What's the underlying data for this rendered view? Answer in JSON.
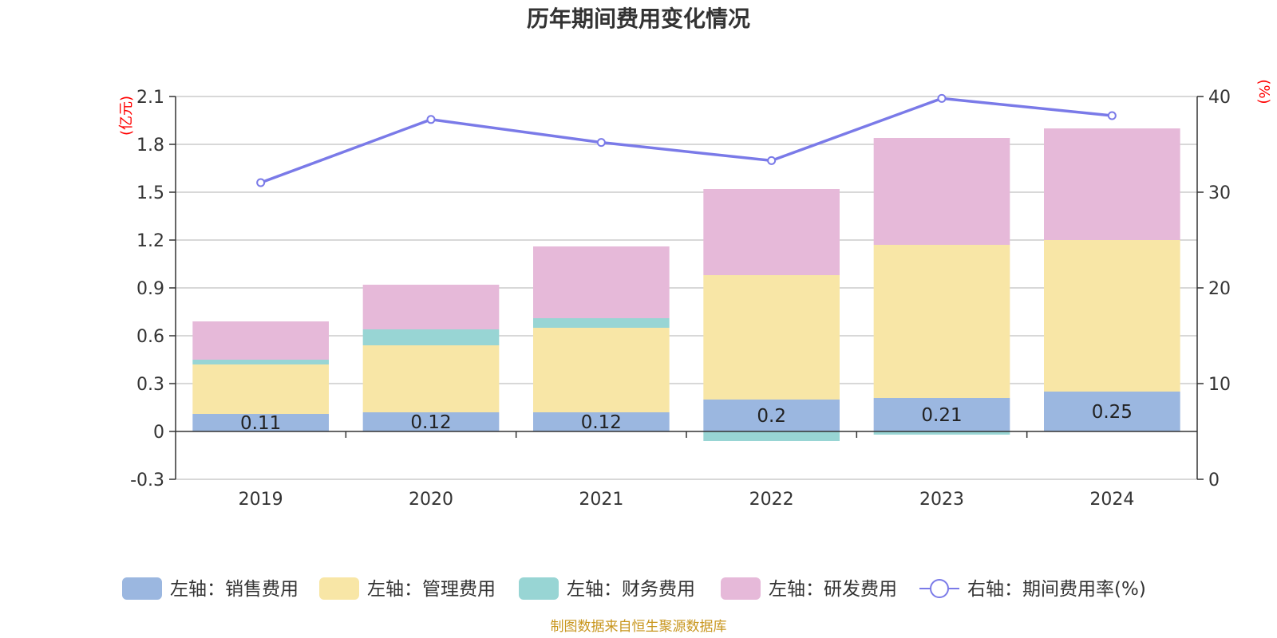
{
  "chart_data": {
    "type": "bar",
    "title": "历年期间费用变化情况",
    "categories": [
      "2019",
      "2020",
      "2021",
      "2022",
      "2023",
      "2024"
    ],
    "left_axis": {
      "unit": "(亿元)",
      "ylim": [
        -0.3,
        2.1
      ],
      "ticks": [
        "2.1",
        "1.8",
        "1.5",
        "1.2",
        "0.9",
        "0.6",
        "0.3",
        "0",
        "-0.3"
      ]
    },
    "right_axis": {
      "unit": "(%)",
      "ylim": [
        0,
        40
      ],
      "ticks": [
        "40",
        "30",
        "20",
        "10",
        "0"
      ]
    },
    "series": [
      {
        "name": "左轴：销售费用",
        "kind": "bar",
        "color": "#9bb7e0",
        "values": [
          0.11,
          0.12,
          0.12,
          0.2,
          0.21,
          0.25
        ],
        "labels": [
          "0.11",
          "0.12",
          "0.12",
          "0.2",
          "0.21",
          "0.25"
        ]
      },
      {
        "name": "左轴：管理费用",
        "kind": "bar",
        "color": "#f8e6a6",
        "values": [
          0.31,
          0.42,
          0.53,
          0.78,
          0.96,
          0.95
        ]
      },
      {
        "name": "左轴：财务费用",
        "kind": "bar",
        "color": "#98d5d4",
        "values": [
          0.03,
          0.1,
          0.06,
          -0.06,
          -0.02,
          0.0
        ]
      },
      {
        "name": "左轴：研发费用",
        "kind": "bar",
        "color": "#e6b9d9",
        "values": [
          0.24,
          0.28,
          0.45,
          0.54,
          0.67,
          0.7
        ]
      },
      {
        "name": "右轴：期间费用率(%)",
        "kind": "line",
        "color": "#7a7ae8",
        "values": [
          31.0,
          37.6,
          35.2,
          33.3,
          39.8,
          38.0
        ]
      }
    ],
    "grid": true,
    "legend_position": "bottom"
  },
  "source_text": "制图数据来自恒生聚源数据库"
}
